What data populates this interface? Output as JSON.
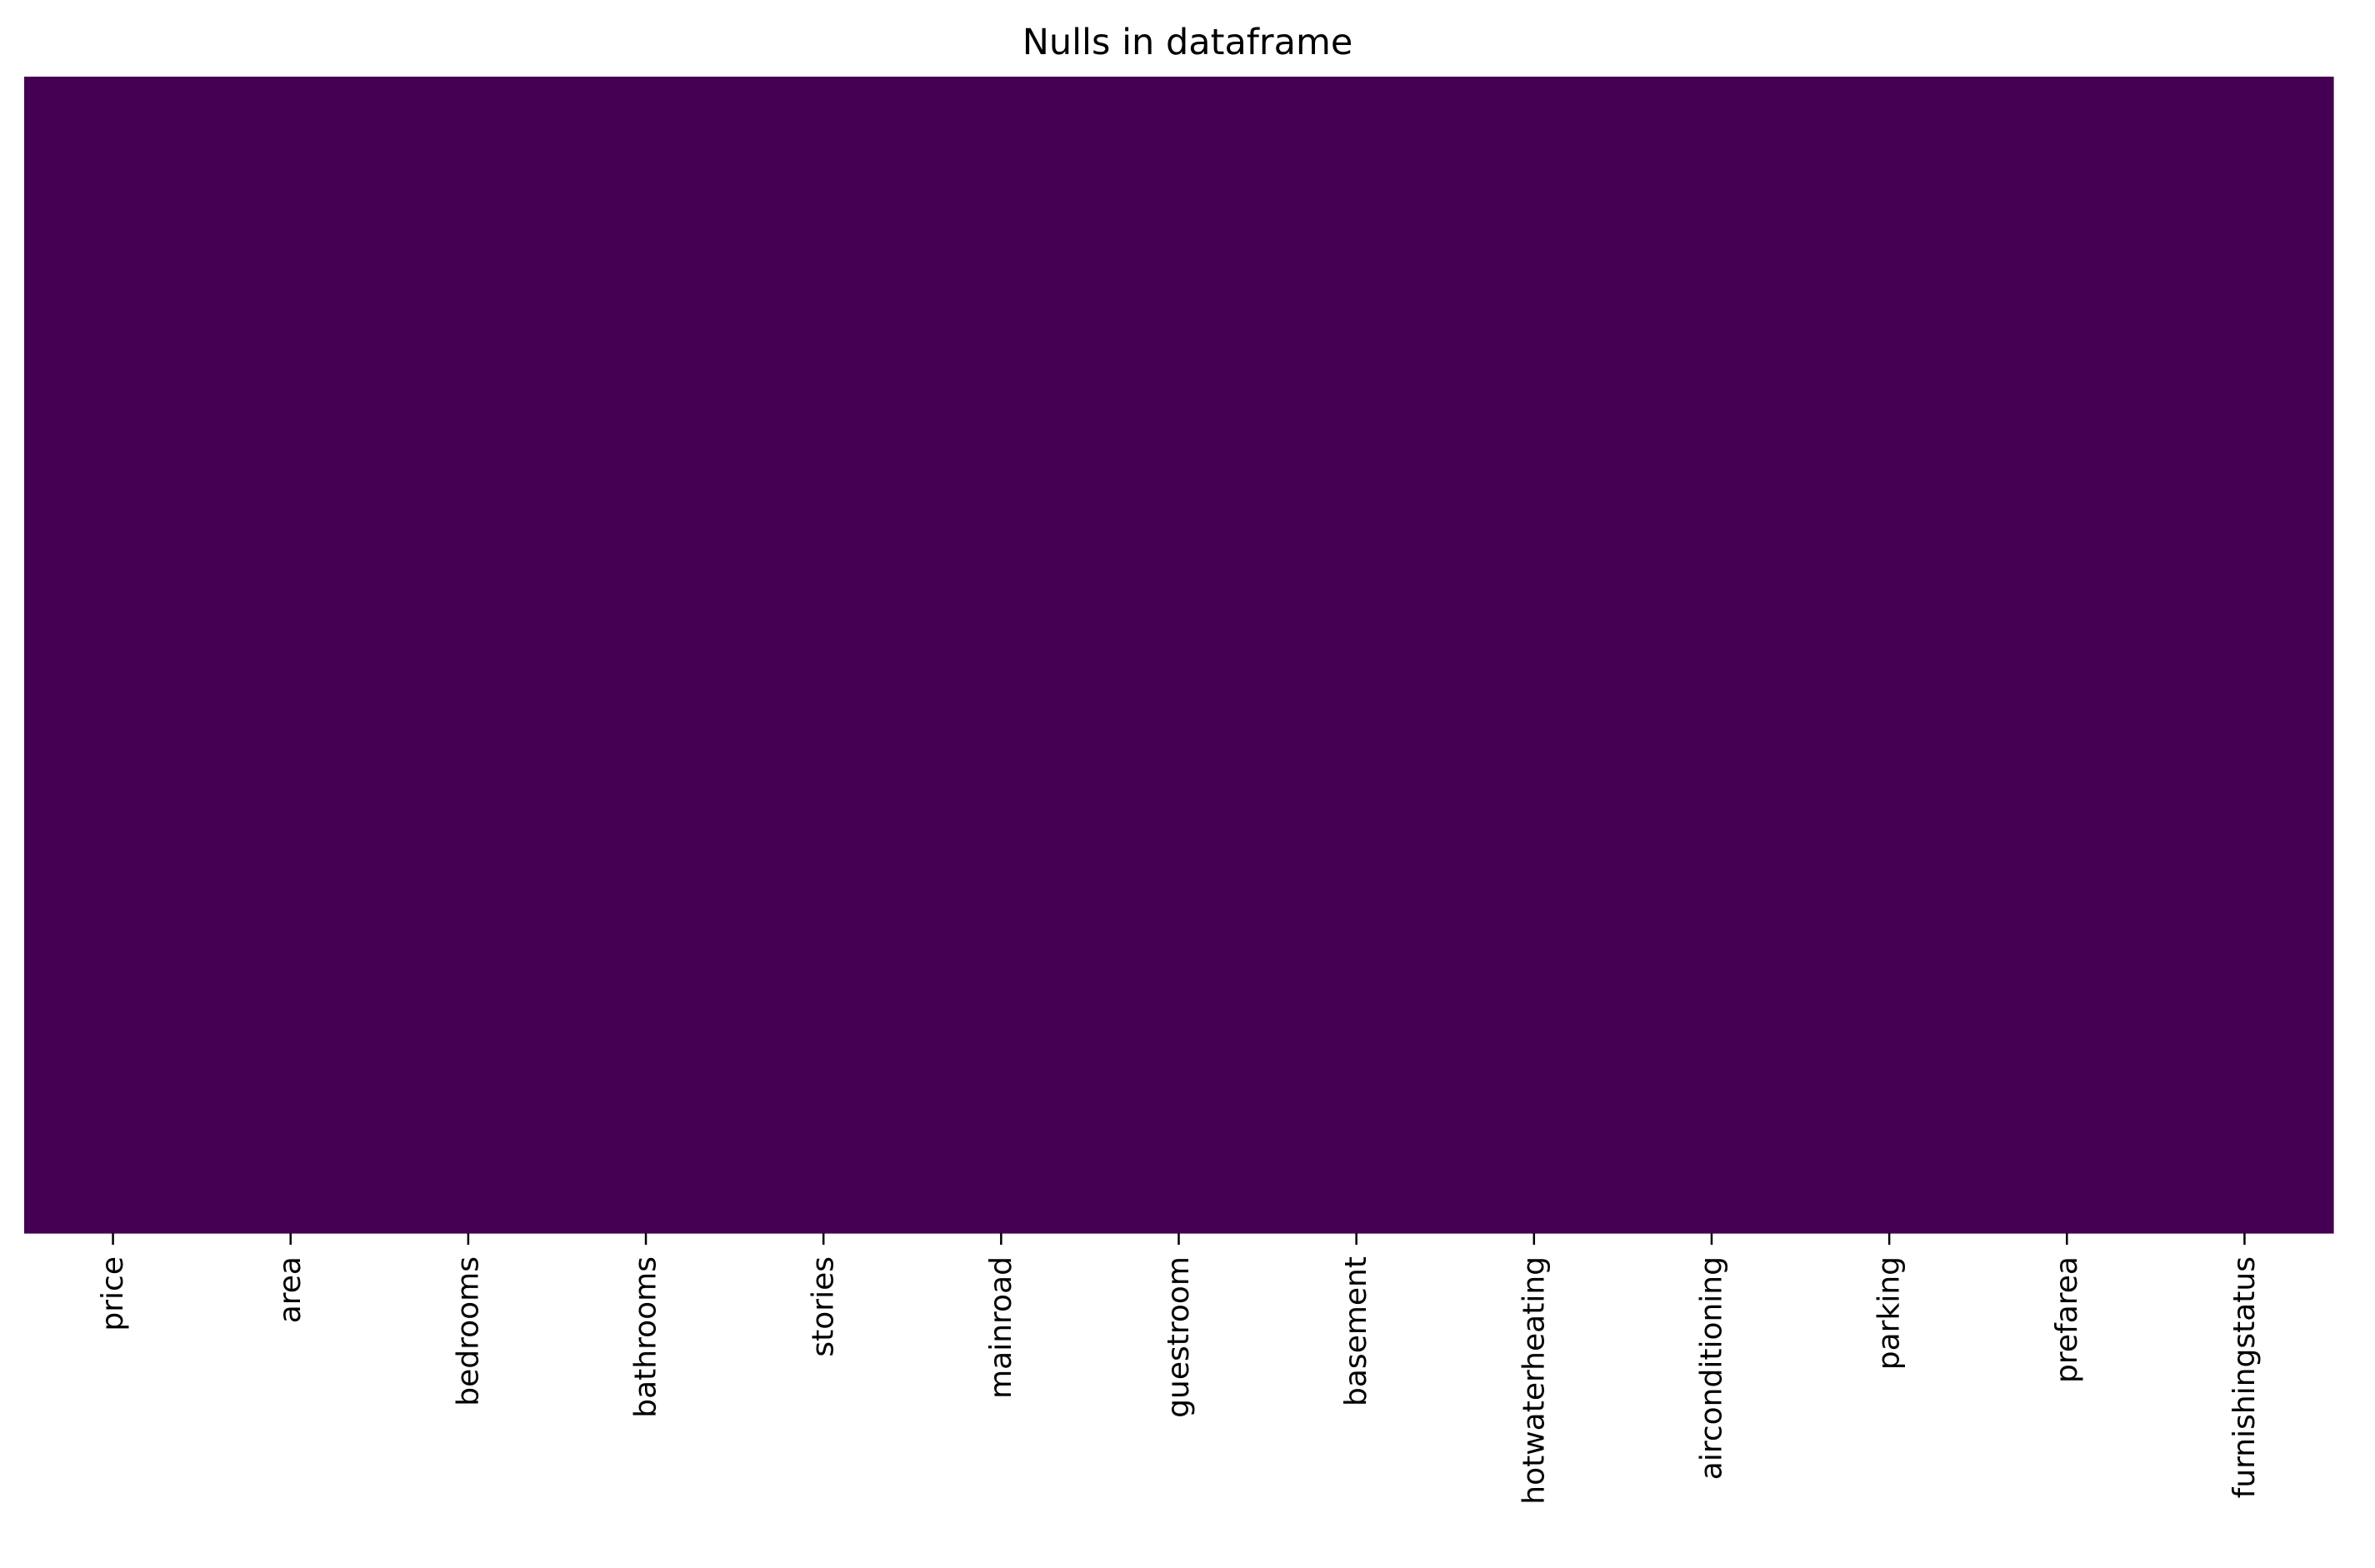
{
  "chart_data": {
    "type": "heatmap",
    "title": "Nulls in dataframe",
    "xlabel": "",
    "ylabel": "",
    "columns": [
      "price",
      "area",
      "bedrooms",
      "bathrooms",
      "stories",
      "mainroad",
      "guestroom",
      "basement",
      "hotwaterheating",
      "airconditioning",
      "parking",
      "prefarea",
      "furnishingstatus"
    ],
    "values": [
      [
        0,
        0,
        0,
        0,
        0,
        0,
        0,
        0,
        0,
        0,
        0,
        0,
        0
      ]
    ],
    "colormap": "viridis",
    "cell_color": "#440154",
    "colorbar": false,
    "y_ticks_shown": false,
    "grid": false
  }
}
